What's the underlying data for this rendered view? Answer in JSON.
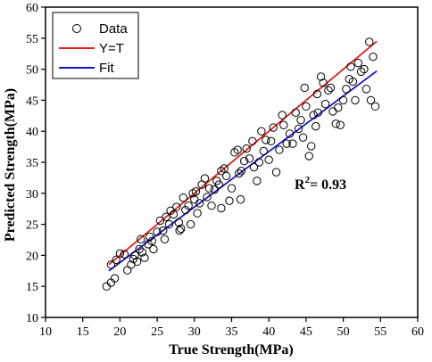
{
  "chart_data": {
    "type": "scatter",
    "xlabel": "True Strength(MPa)",
    "ylabel": "Predicted Strength(MPa)",
    "xlim": [
      10,
      60
    ],
    "ylim": [
      10,
      60
    ],
    "xticks": [
      10,
      15,
      20,
      25,
      30,
      35,
      40,
      45,
      50,
      55,
      60
    ],
    "yticks": [
      10,
      15,
      20,
      25,
      30,
      35,
      40,
      45,
      50,
      55,
      60
    ],
    "grid": false,
    "legend_position": "top-left",
    "annotation": {
      "prefix": "R",
      "sup": "2",
      "suffix": "= 0.93"
    },
    "series": [
      {
        "name": "Data",
        "kind": "scatter",
        "marker": "open-circle",
        "color": "#000000",
        "points": [
          [
            18.2,
            15.0
          ],
          [
            18.8,
            15.6
          ],
          [
            19.3,
            16.3
          ],
          [
            18.8,
            18.5
          ],
          [
            19.5,
            19.3
          ],
          [
            20.0,
            20.3
          ],
          [
            20.6,
            20.2
          ],
          [
            21.0,
            17.6
          ],
          [
            21.5,
            18.5
          ],
          [
            21.8,
            19.4
          ],
          [
            22.3,
            19.0
          ],
          [
            22.0,
            20.0
          ],
          [
            22.6,
            21.0
          ],
          [
            23.0,
            20.5
          ],
          [
            23.3,
            19.6
          ],
          [
            23.8,
            21.8
          ],
          [
            24.3,
            22.3
          ],
          [
            24.5,
            21.0
          ],
          [
            25.0,
            23.8
          ],
          [
            25.4,
            25.6
          ],
          [
            25.8,
            24.0
          ],
          [
            26.2,
            26.2
          ],
          [
            26.6,
            25.0
          ],
          [
            26.8,
            27.2
          ],
          [
            27.2,
            26.6
          ],
          [
            27.6,
            27.8
          ],
          [
            27.9,
            25.3
          ],
          [
            28.2,
            24.3
          ],
          [
            28.5,
            29.3
          ],
          [
            28.8,
            27.3
          ],
          [
            29.2,
            28.0
          ],
          [
            29.5,
            25.0
          ],
          [
            29.8,
            30.0
          ],
          [
            30.2,
            30.3
          ],
          [
            30.4,
            26.8
          ],
          [
            30.7,
            28.4
          ],
          [
            31.0,
            31.4
          ],
          [
            31.4,
            32.4
          ],
          [
            31.7,
            29.4
          ],
          [
            32.0,
            30.8
          ],
          [
            32.3,
            28.0
          ],
          [
            32.7,
            30.6
          ],
          [
            33.0,
            32.0
          ],
          [
            33.3,
            31.4
          ],
          [
            33.6,
            27.6
          ],
          [
            34.0,
            34.0
          ],
          [
            34.3,
            32.8
          ],
          [
            34.7,
            28.8
          ],
          [
            35.0,
            30.8
          ],
          [
            35.4,
            36.6
          ],
          [
            35.8,
            37.0
          ],
          [
            36.0,
            33.2
          ],
          [
            36.3,
            33.6
          ],
          [
            36.7,
            35.2
          ],
          [
            37.0,
            37.2
          ],
          [
            37.4,
            35.6
          ],
          [
            37.8,
            38.4
          ],
          [
            38.0,
            34.2
          ],
          [
            38.4,
            32.0
          ],
          [
            38.7,
            35.0
          ],
          [
            39.0,
            40.0
          ],
          [
            39.3,
            36.8
          ],
          [
            39.6,
            38.6
          ],
          [
            40.0,
            35.4
          ],
          [
            40.3,
            38.4
          ],
          [
            40.6,
            40.6
          ],
          [
            41.0,
            33.4
          ],
          [
            41.4,
            37.0
          ],
          [
            41.8,
            42.6
          ],
          [
            42.0,
            41.0
          ],
          [
            42.4,
            38.0
          ],
          [
            42.8,
            39.6
          ],
          [
            43.2,
            38.0
          ],
          [
            43.6,
            43.0
          ],
          [
            44.0,
            40.4
          ],
          [
            44.3,
            41.8
          ],
          [
            44.6,
            39.0
          ],
          [
            45.0,
            44.0
          ],
          [
            45.4,
            36.0
          ],
          [
            45.7,
            37.6
          ],
          [
            46.0,
            42.6
          ],
          [
            46.3,
            40.8
          ],
          [
            46.6,
            43.0
          ],
          [
            47.0,
            48.8
          ],
          [
            47.3,
            47.8
          ],
          [
            47.6,
            44.4
          ],
          [
            48.0,
            46.6
          ],
          [
            48.3,
            47.0
          ],
          [
            48.6,
            43.2
          ],
          [
            49.0,
            41.2
          ],
          [
            49.3,
            43.8
          ],
          [
            49.6,
            41.0
          ],
          [
            50.0,
            45.0
          ],
          [
            50.4,
            46.8
          ],
          [
            50.8,
            48.4
          ],
          [
            51.0,
            50.4
          ],
          [
            51.3,
            48.0
          ],
          [
            51.6,
            45.0
          ],
          [
            52.0,
            51.0
          ],
          [
            52.4,
            49.6
          ],
          [
            52.8,
            50.0
          ],
          [
            53.1,
            46.8
          ],
          [
            53.5,
            54.4
          ],
          [
            53.7,
            45.0
          ],
          [
            54.0,
            52.0
          ],
          [
            54.3,
            44.0
          ],
          [
            22.8,
            22.6
          ],
          [
            24.0,
            23.0
          ],
          [
            26.0,
            22.6
          ],
          [
            28.0,
            24.0
          ],
          [
            30.0,
            29.0
          ],
          [
            33.6,
            33.6
          ],
          [
            36.2,
            29.0
          ],
          [
            44.8,
            47.0
          ],
          [
            46.5,
            46.0
          ]
        ]
      },
      {
        "name": "Y=T",
        "kind": "line",
        "color": "#e02020",
        "points": [
          [
            18.5,
            18.5
          ],
          [
            54.5,
            54.5
          ]
        ]
      },
      {
        "name": "Fit",
        "kind": "line",
        "color": "#1515d0",
        "points": [
          [
            18.5,
            17.5
          ],
          [
            54.5,
            49.7
          ]
        ]
      }
    ]
  }
}
